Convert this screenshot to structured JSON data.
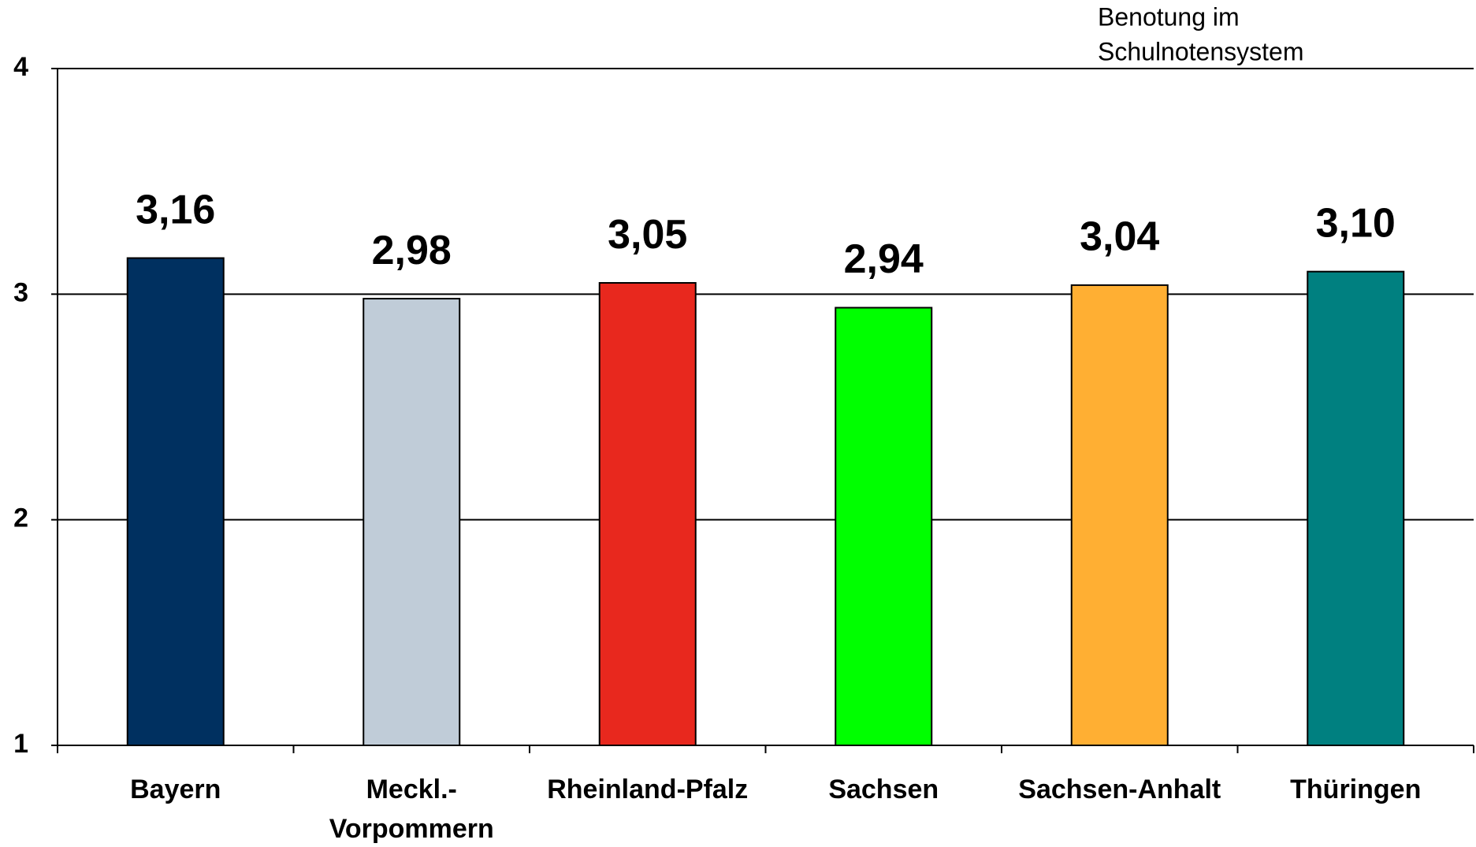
{
  "chart_data": {
    "type": "bar",
    "annotation_lines": [
      "Benotung im",
      "Schulnotensystem"
    ],
    "categories": [
      "Bayern",
      "Meckl.-\nVorpommern",
      "Rheinland-Pfalz",
      "Sachsen",
      "Sachsen-Anhalt",
      "Thüringen"
    ],
    "values": [
      3.16,
      2.98,
      3.05,
      2.94,
      3.04,
      3.1
    ],
    "value_labels": [
      "3,16",
      "2,98",
      "3,05",
      "2,94",
      "3,04",
      "3,10"
    ],
    "colors": [
      "#003060",
      "#c0ccd8",
      "#e8281e",
      "#00ff00",
      "#ffaf33",
      "#008080"
    ],
    "ylim": [
      1,
      4
    ],
    "yticks": [
      1,
      2,
      3,
      4
    ],
    "grid": true
  }
}
